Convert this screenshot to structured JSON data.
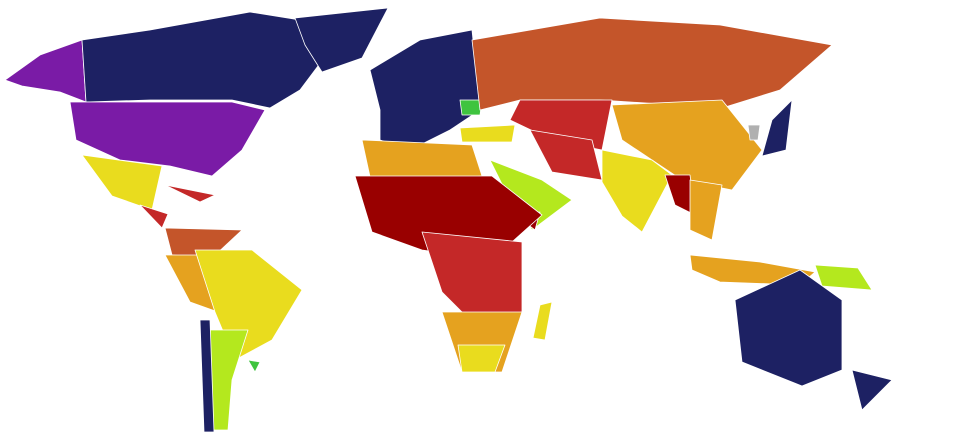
{
  "map": {
    "type": "choropleth-world-map",
    "background": "#ffffff",
    "colors": {
      "purple": "#7a1ba6",
      "navy": "#1d2163",
      "rust": "#c4552a",
      "red": "#c42828",
      "darkred": "#990000",
      "orange": "#e5a21f",
      "yellow": "#e9dc1e",
      "lime": "#b4e81e",
      "green": "#3fc43f",
      "grey": "#b0b0b0"
    }
  }
}
